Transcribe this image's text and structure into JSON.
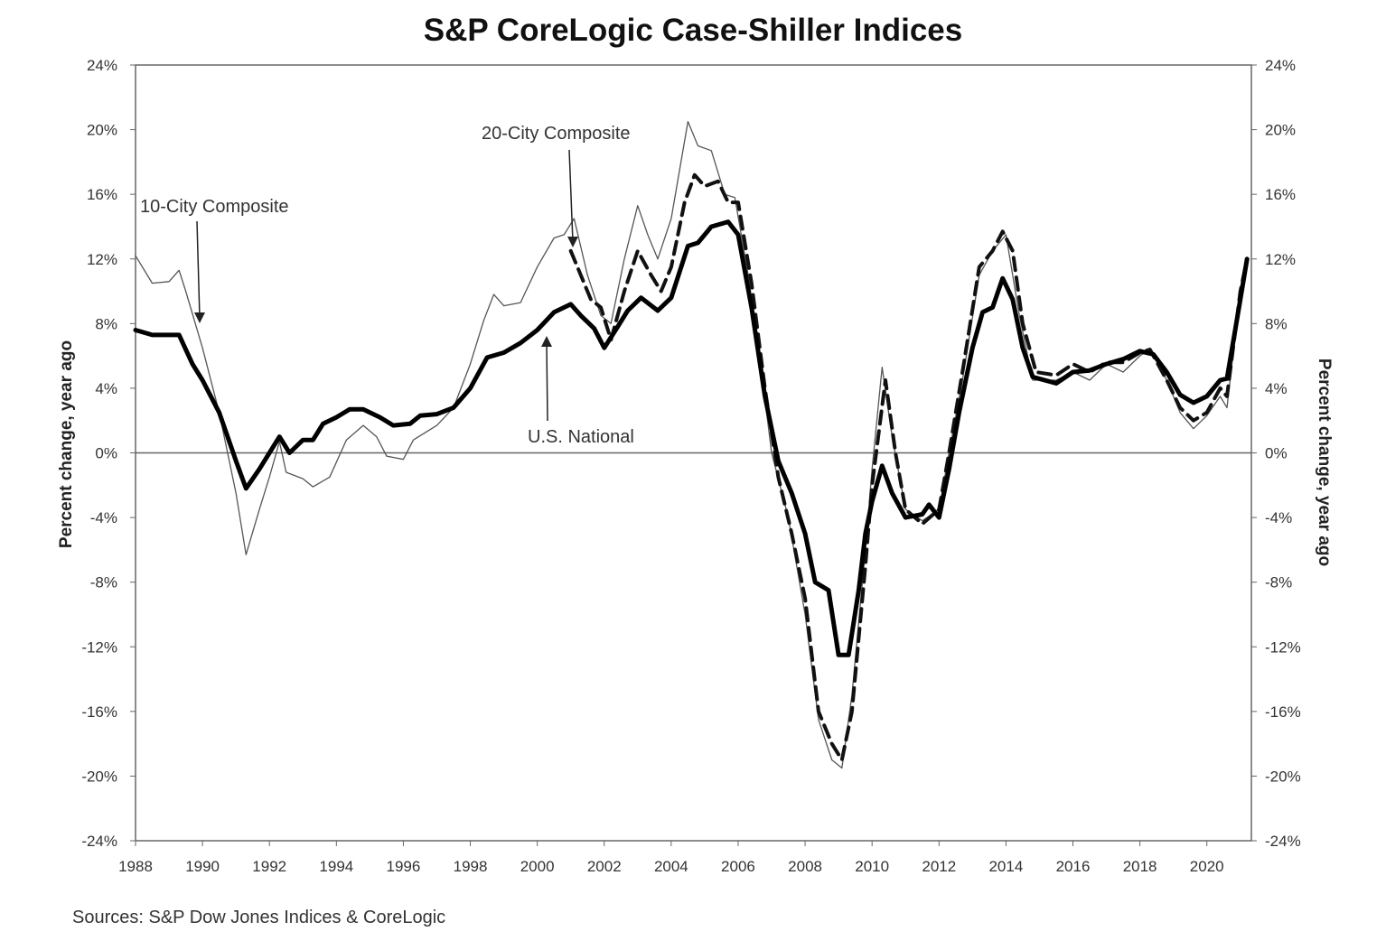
{
  "chart_data": {
    "type": "line",
    "title": "S&P CoreLogic Case-Shiller Indices",
    "ylabel_left": "Percent change, year ago",
    "ylabel_right": "Percent change, year ago",
    "xlim": [
      1988,
      2021.33
    ],
    "ylim": [
      -24,
      24
    ],
    "x_ticks": [
      "1988",
      "1990",
      "1992",
      "1994",
      "1996",
      "1998",
      "2000",
      "2002",
      "2004",
      "2006",
      "2008",
      "2010",
      "2012",
      "2014",
      "2016",
      "2018",
      "2020"
    ],
    "y_ticks": [
      "24%",
      "20%",
      "16%",
      "12%",
      "8%",
      "4%",
      "0%",
      "-4%",
      "-8%",
      "-12%",
      "-16%",
      "-20%",
      "-24%"
    ],
    "zero_line": true,
    "grid": false,
    "source": "Sources:  S&P Dow Jones Indices & CoreLogic",
    "annotations": {
      "ten_city": "10-City Composite",
      "twenty_city": "20-City Composite",
      "national": "U.S. National"
    },
    "series": [
      {
        "name": "10-City Composite",
        "style": "thin",
        "color": "#555555",
        "points": [
          [
            1988.0,
            12.2
          ],
          [
            1988.5,
            10.5
          ],
          [
            1989.0,
            10.6
          ],
          [
            1989.3,
            11.3
          ],
          [
            1989.5,
            10.0
          ],
          [
            1990.0,
            6.5
          ],
          [
            1990.5,
            2.5
          ],
          [
            1991.0,
            -2.5
          ],
          [
            1991.3,
            -6.3
          ],
          [
            1991.7,
            -3.5
          ],
          [
            1992.0,
            -1.5
          ],
          [
            1992.3,
            0.7
          ],
          [
            1992.5,
            -1.2
          ],
          [
            1993.0,
            -1.6
          ],
          [
            1993.3,
            -2.1
          ],
          [
            1993.8,
            -1.5
          ],
          [
            1994.3,
            0.8
          ],
          [
            1994.8,
            1.7
          ],
          [
            1995.2,
            1.0
          ],
          [
            1995.5,
            -0.2
          ],
          [
            1996.0,
            -0.4
          ],
          [
            1996.3,
            0.8
          ],
          [
            1997.0,
            1.7
          ],
          [
            1997.5,
            2.8
          ],
          [
            1998.0,
            5.5
          ],
          [
            1998.4,
            8.2
          ],
          [
            1998.7,
            9.8
          ],
          [
            1999.0,
            9.1
          ],
          [
            1999.5,
            9.3
          ],
          [
            2000.0,
            11.5
          ],
          [
            2000.5,
            13.3
          ],
          [
            2000.8,
            13.5
          ],
          [
            2001.1,
            14.5
          ],
          [
            2001.5,
            11.0
          ],
          [
            2001.9,
            8.5
          ],
          [
            2002.2,
            8.0
          ],
          [
            2002.6,
            12.0
          ],
          [
            2003.0,
            15.3
          ],
          [
            2003.3,
            13.5
          ],
          [
            2003.6,
            12.0
          ],
          [
            2004.0,
            14.5
          ],
          [
            2004.5,
            20.5
          ],
          [
            2004.8,
            19.0
          ],
          [
            2005.2,
            18.7
          ],
          [
            2005.6,
            16.0
          ],
          [
            2005.9,
            15.8
          ],
          [
            2006.3,
            11.0
          ],
          [
            2006.7,
            5.0
          ],
          [
            2007.0,
            0.0
          ],
          [
            2007.5,
            -4.0
          ],
          [
            2008.0,
            -10.0
          ],
          [
            2008.4,
            -16.5
          ],
          [
            2008.8,
            -19.0
          ],
          [
            2009.1,
            -19.5
          ],
          [
            2009.4,
            -15.0
          ],
          [
            2009.8,
            -6.0
          ],
          [
            2010.0,
            -1.0
          ],
          [
            2010.3,
            5.3
          ],
          [
            2010.6,
            1.0
          ],
          [
            2011.0,
            -3.5
          ],
          [
            2011.5,
            -4.2
          ],
          [
            2012.0,
            -3.5
          ],
          [
            2012.3,
            0.0
          ],
          [
            2012.7,
            4.5
          ],
          [
            2013.2,
            11.0
          ],
          [
            2013.6,
            12.5
          ],
          [
            2014.0,
            13.5
          ],
          [
            2014.4,
            8.5
          ],
          [
            2014.8,
            4.5
          ],
          [
            2015.5,
            4.5
          ],
          [
            2016.0,
            5.0
          ],
          [
            2016.5,
            4.5
          ],
          [
            2017.0,
            5.5
          ],
          [
            2017.5,
            5.0
          ],
          [
            2018.0,
            6.0
          ],
          [
            2018.3,
            6.4
          ],
          [
            2018.8,
            4.5
          ],
          [
            2019.2,
            2.5
          ],
          [
            2019.6,
            1.5
          ],
          [
            2020.0,
            2.3
          ],
          [
            2020.4,
            3.5
          ],
          [
            2020.6,
            2.8
          ],
          [
            2021.0,
            10.0
          ],
          [
            2021.2,
            12.0
          ]
        ]
      },
      {
        "name": "20-City Composite",
        "style": "dashed",
        "color": "#111111",
        "points": [
          [
            2001.0,
            12.5
          ],
          [
            2001.3,
            11.0
          ],
          [
            2001.6,
            9.5
          ],
          [
            2001.9,
            9.0
          ],
          [
            2002.2,
            7.0
          ],
          [
            2002.6,
            10.0
          ],
          [
            2003.0,
            12.5
          ],
          [
            2003.4,
            11.0
          ],
          [
            2003.7,
            10.0
          ],
          [
            2004.0,
            11.5
          ],
          [
            2004.4,
            15.5
          ],
          [
            2004.7,
            17.2
          ],
          [
            2005.0,
            16.5
          ],
          [
            2005.4,
            16.8
          ],
          [
            2005.7,
            15.5
          ],
          [
            2006.0,
            15.5
          ],
          [
            2006.4,
            10.5
          ],
          [
            2006.8,
            4.0
          ],
          [
            2007.2,
            -1.5
          ],
          [
            2007.6,
            -5.0
          ],
          [
            2008.0,
            -9.0
          ],
          [
            2008.4,
            -16.0
          ],
          [
            2008.8,
            -18.0
          ],
          [
            2009.1,
            -19.0
          ],
          [
            2009.4,
            -16.0
          ],
          [
            2009.8,
            -7.0
          ],
          [
            2010.0,
            -2.0
          ],
          [
            2010.4,
            4.5
          ],
          [
            2010.7,
            0.0
          ],
          [
            2011.0,
            -3.5
          ],
          [
            2011.5,
            -4.4
          ],
          [
            2012.0,
            -3.5
          ],
          [
            2012.3,
            0.0
          ],
          [
            2012.7,
            5.0
          ],
          [
            2013.2,
            11.5
          ],
          [
            2013.6,
            12.5
          ],
          [
            2013.9,
            13.7
          ],
          [
            2014.2,
            12.5
          ],
          [
            2014.5,
            8.0
          ],
          [
            2014.9,
            5.0
          ],
          [
            2015.5,
            4.8
          ],
          [
            2016.0,
            5.5
          ],
          [
            2016.5,
            5.0
          ],
          [
            2017.0,
            5.6
          ],
          [
            2017.5,
            5.6
          ],
          [
            2018.0,
            6.2
          ],
          [
            2018.3,
            6.4
          ],
          [
            2018.8,
            4.5
          ],
          [
            2019.2,
            2.8
          ],
          [
            2019.6,
            2.0
          ],
          [
            2020.0,
            2.5
          ],
          [
            2020.4,
            4.0
          ],
          [
            2020.6,
            3.5
          ],
          [
            2021.0,
            10.0
          ],
          [
            2021.2,
            12.0
          ]
        ]
      },
      {
        "name": "U.S. National",
        "style": "thick",
        "color": "#000000",
        "points": [
          [
            1988.0,
            7.6
          ],
          [
            1988.5,
            7.3
          ],
          [
            1989.0,
            7.3
          ],
          [
            1989.3,
            7.3
          ],
          [
            1989.7,
            5.5
          ],
          [
            1990.0,
            4.5
          ],
          [
            1990.5,
            2.5
          ],
          [
            1991.0,
            -0.5
          ],
          [
            1991.3,
            -2.2
          ],
          [
            1991.7,
            -1.0
          ],
          [
            1992.0,
            0.0
          ],
          [
            1992.3,
            1.0
          ],
          [
            1992.6,
            0.0
          ],
          [
            1993.0,
            0.8
          ],
          [
            1993.3,
            0.8
          ],
          [
            1993.6,
            1.8
          ],
          [
            1994.0,
            2.2
          ],
          [
            1994.4,
            2.7
          ],
          [
            1994.8,
            2.7
          ],
          [
            1995.3,
            2.2
          ],
          [
            1995.7,
            1.7
          ],
          [
            1996.2,
            1.8
          ],
          [
            1996.5,
            2.3
          ],
          [
            1997.0,
            2.4
          ],
          [
            1997.5,
            2.8
          ],
          [
            1998.0,
            4.0
          ],
          [
            1998.5,
            5.9
          ],
          [
            1999.0,
            6.2
          ],
          [
            1999.5,
            6.8
          ],
          [
            2000.0,
            7.6
          ],
          [
            2000.5,
            8.7
          ],
          [
            2001.0,
            9.2
          ],
          [
            2001.3,
            8.5
          ],
          [
            2001.7,
            7.7
          ],
          [
            2002.0,
            6.5
          ],
          [
            2002.4,
            7.8
          ],
          [
            2002.7,
            8.8
          ],
          [
            2003.1,
            9.6
          ],
          [
            2003.6,
            8.8
          ],
          [
            2004.0,
            9.6
          ],
          [
            2004.5,
            12.8
          ],
          [
            2004.8,
            13.0
          ],
          [
            2005.2,
            14.0
          ],
          [
            2005.7,
            14.3
          ],
          [
            2006.0,
            13.5
          ],
          [
            2006.4,
            9.0
          ],
          [
            2006.8,
            3.5
          ],
          [
            2007.2,
            -0.5
          ],
          [
            2007.6,
            -2.5
          ],
          [
            2008.0,
            -5.0
          ],
          [
            2008.3,
            -8.0
          ],
          [
            2008.7,
            -8.5
          ],
          [
            2009.0,
            -12.5
          ],
          [
            2009.3,
            -12.5
          ],
          [
            2009.6,
            -8.5
          ],
          [
            2009.8,
            -5.0
          ],
          [
            2010.0,
            -3.0
          ],
          [
            2010.3,
            -0.8
          ],
          [
            2010.6,
            -2.5
          ],
          [
            2011.0,
            -4.0
          ],
          [
            2011.5,
            -3.8
          ],
          [
            2011.7,
            -3.2
          ],
          [
            2012.0,
            -4.0
          ],
          [
            2012.3,
            -1.0
          ],
          [
            2012.6,
            2.5
          ],
          [
            2013.0,
            6.5
          ],
          [
            2013.3,
            8.7
          ],
          [
            2013.6,
            9.0
          ],
          [
            2013.9,
            10.8
          ],
          [
            2014.2,
            9.5
          ],
          [
            2014.5,
            6.5
          ],
          [
            2014.8,
            4.7
          ],
          [
            2015.5,
            4.3
          ],
          [
            2016.0,
            5.0
          ],
          [
            2016.5,
            5.1
          ],
          [
            2017.0,
            5.5
          ],
          [
            2017.5,
            5.8
          ],
          [
            2018.0,
            6.3
          ],
          [
            2018.4,
            6.1
          ],
          [
            2018.8,
            5.0
          ],
          [
            2019.2,
            3.6
          ],
          [
            2019.6,
            3.1
          ],
          [
            2020.0,
            3.5
          ],
          [
            2020.4,
            4.5
          ],
          [
            2020.6,
            4.6
          ],
          [
            2021.0,
            9.5
          ],
          [
            2021.2,
            12.0
          ]
        ]
      }
    ]
  }
}
